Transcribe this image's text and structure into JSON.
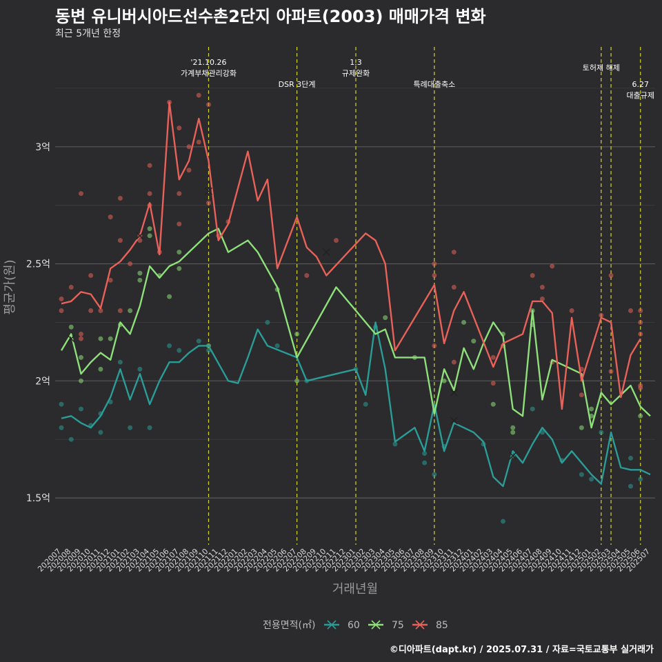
{
  "header": {
    "title": "동변 유니버시아드선수촌2단지 아파트(2003) 매매가격 변화",
    "subtitle": "최근 5개년 한정",
    "caption": "©디아파트(dapt.kr) / 2025.07.31 / 자료=국토교통부 실거래가"
  },
  "chart_data": {
    "type": "line",
    "xlabel": "거래년월",
    "ylabel": "평균가(원)",
    "ylim": [
      1.3,
      3.45
    ],
    "yticks": [
      {
        "value": 1.5,
        "label": "1.5억"
      },
      {
        "value": 2.0,
        "label": "2억"
      },
      {
        "value": 2.5,
        "label": "2.5억"
      },
      {
        "value": 3.0,
        "label": "3억"
      }
    ],
    "grid": true,
    "legend_position": "bottom",
    "legend_title": "전용면적(㎡)",
    "categories": [
      "202007",
      "202008",
      "202009",
      "202010",
      "202011",
      "202012",
      "202101",
      "202102",
      "202103",
      "202104",
      "202105",
      "202106",
      "202107",
      "202108",
      "202109",
      "202110",
      "202111",
      "202112",
      "202201",
      "202202",
      "202203",
      "202204",
      "202205",
      "202206",
      "202207",
      "202208",
      "202209",
      "202210",
      "202211",
      "202212",
      "202301",
      "202302",
      "202303",
      "202304",
      "202305",
      "202306",
      "202307",
      "202308",
      "202309",
      "202310",
      "202311",
      "202312",
      "202401",
      "202402",
      "202403",
      "202404",
      "202405",
      "202406",
      "202407",
      "202408",
      "202409",
      "202410",
      "202411",
      "202412",
      "202501",
      "202502",
      "202503",
      "202504",
      "202505",
      "202506",
      "202507"
    ],
    "series": [
      {
        "name": "60",
        "color": "#2a9d98",
        "values": [
          1.84,
          1.85,
          1.82,
          1.8,
          1.85,
          1.93,
          2.05,
          1.92,
          2.03,
          1.9,
          2.0,
          2.08,
          2.08,
          2.12,
          2.15,
          2.15,
          null,
          2.0,
          1.99,
          2.1,
          2.22,
          2.15,
          null,
          null,
          2.1,
          2.0,
          null,
          null,
          null,
          null,
          2.05,
          1.94,
          2.25,
          2.05,
          1.74,
          1.77,
          1.8,
          1.7,
          1.9,
          1.7,
          1.82,
          1.8,
          1.78,
          1.74,
          1.59,
          1.55,
          1.7,
          1.65,
          1.73,
          1.8,
          1.75,
          1.65,
          1.7,
          1.65,
          1.6,
          1.56,
          1.78,
          1.63,
          1.62,
          1.62,
          1.6
        ],
        "points": [
          [
            0,
            1.9
          ],
          [
            0,
            1.8
          ],
          [
            1,
            1.75
          ],
          [
            2,
            1.88
          ],
          [
            3,
            1.81
          ],
          [
            4,
            1.78
          ],
          [
            4,
            1.86
          ],
          [
            5,
            1.91
          ],
          [
            6,
            2.08
          ],
          [
            7,
            1.8
          ],
          [
            8,
            2.05
          ],
          [
            9,
            1.8
          ],
          [
            11,
            2.15
          ],
          [
            12,
            2.13
          ],
          [
            14,
            2.17
          ],
          [
            15,
            2.13
          ],
          [
            21,
            2.25
          ],
          [
            22,
            2.15
          ],
          [
            25,
            2.0
          ],
          [
            30,
            2.05
          ],
          [
            31,
            1.9
          ],
          [
            32,
            2.23
          ],
          [
            34,
            1.73
          ],
          [
            37,
            1.65
          ],
          [
            37,
            1.69
          ],
          [
            38,
            1.6
          ],
          [
            39,
            1.72
          ],
          [
            43,
            1.73
          ],
          [
            45,
            1.4
          ],
          [
            46,
            1.68
          ],
          [
            48,
            1.88
          ],
          [
            49,
            1.78
          ],
          [
            51,
            1.66
          ],
          [
            53,
            1.6
          ],
          [
            54,
            1.58
          ],
          [
            55,
            1.78
          ],
          [
            58,
            1.55
          ],
          [
            58,
            1.67
          ],
          [
            59,
            1.58
          ]
        ],
        "cross_points": [
          [
            40,
            1.83
          ],
          [
            46,
            1.68
          ]
        ]
      },
      {
        "name": "75",
        "color": "#8ee07a",
        "values": [
          2.13,
          2.2,
          2.03,
          2.08,
          2.12,
          2.09,
          2.25,
          2.2,
          2.32,
          2.49,
          2.44,
          2.49,
          2.51,
          2.55,
          2.59,
          2.63,
          2.65,
          2.55,
          null,
          2.6,
          2.55,
          null,
          2.4,
          null,
          2.1,
          null,
          null,
          null,
          2.4,
          null,
          null,
          null,
          2.2,
          2.22,
          2.1,
          2.1,
          null,
          2.1,
          1.86,
          2.05,
          1.96,
          2.14,
          2.05,
          2.16,
          2.25,
          2.19,
          1.88,
          1.85,
          2.3,
          1.92,
          2.09,
          null,
          null,
          2.03,
          1.8,
          1.95,
          1.9,
          1.94,
          1.98,
          1.89,
          1.85
        ],
        "points": [
          [
            1,
            2.23
          ],
          [
            2,
            2.0
          ],
          [
            2,
            2.1
          ],
          [
            4,
            2.18
          ],
          [
            4,
            2.05
          ],
          [
            5,
            2.18
          ],
          [
            6,
            2.24
          ],
          [
            7,
            2.3
          ],
          [
            8,
            2.43
          ],
          [
            8,
            2.46
          ],
          [
            9,
            2.65
          ],
          [
            9,
            2.62
          ],
          [
            10,
            2.45
          ],
          [
            11,
            2.36
          ],
          [
            12,
            2.55
          ],
          [
            12,
            2.48
          ],
          [
            15,
            2.15
          ],
          [
            22,
            2.39
          ],
          [
            24,
            2.2
          ],
          [
            24,
            2.0
          ],
          [
            33,
            2.27
          ],
          [
            36,
            2.1
          ],
          [
            39,
            2.0
          ],
          [
            41,
            2.25
          ],
          [
            42,
            2.17
          ],
          [
            44,
            1.9
          ],
          [
            45,
            2.2
          ],
          [
            46,
            1.78
          ],
          [
            46,
            1.8
          ],
          [
            48,
            2.3
          ],
          [
            48,
            2.24
          ],
          [
            53,
            1.8
          ],
          [
            54,
            1.85
          ],
          [
            54,
            1.88
          ],
          [
            59,
            1.85
          ]
        ],
        "cross_points": [
          [
            1,
            2.18
          ],
          [
            40,
            1.95
          ]
        ]
      },
      {
        "name": "85",
        "color": "#e8625a",
        "values": [
          2.33,
          2.34,
          2.38,
          2.37,
          2.31,
          2.48,
          2.51,
          2.56,
          2.62,
          2.76,
          2.54,
          3.19,
          2.86,
          2.94,
          3.12,
          2.94,
          2.6,
          2.67,
          null,
          2.98,
          2.77,
          2.86,
          2.48,
          null,
          2.7,
          2.57,
          2.53,
          2.45,
          null,
          null,
          null,
          2.63,
          2.6,
          2.5,
          2.13,
          2.2,
          null,
          null,
          2.41,
          2.16,
          2.3,
          2.38,
          null,
          null,
          2.06,
          2.16,
          null,
          2.2,
          2.34,
          2.34,
          2.29,
          1.88,
          2.27,
          2.0,
          null,
          2.27,
          2.25,
          1.93,
          2.11,
          2.18,
          null
        ],
        "points": [
          [
            0,
            2.35
          ],
          [
            0,
            2.3
          ],
          [
            1,
            2.4
          ],
          [
            2,
            2.8
          ],
          [
            2,
            2.2
          ],
          [
            2,
            2.18
          ],
          [
            3,
            2.45
          ],
          [
            3,
            2.3
          ],
          [
            4,
            2.3
          ],
          [
            5,
            2.7
          ],
          [
            5,
            2.43
          ],
          [
            6,
            2.78
          ],
          [
            6,
            2.6
          ],
          [
            6,
            2.3
          ],
          [
            7,
            2.5
          ],
          [
            8,
            2.62
          ],
          [
            8,
            2.6
          ],
          [
            9,
            2.92
          ],
          [
            9,
            2.8
          ],
          [
            9,
            2.75
          ],
          [
            10,
            2.55
          ],
          [
            11,
            3.19
          ],
          [
            12,
            3.08
          ],
          [
            12,
            2.8
          ],
          [
            12,
            2.67
          ],
          [
            13,
            2.9
          ],
          [
            13,
            3.0
          ],
          [
            14,
            3.22
          ],
          [
            14,
            3.02
          ],
          [
            15,
            3.18
          ],
          [
            15,
            2.76
          ],
          [
            16,
            2.62
          ],
          [
            17,
            2.68
          ],
          [
            25,
            2.45
          ],
          [
            28,
            2.6
          ],
          [
            38,
            2.5
          ],
          [
            38,
            2.45
          ],
          [
            38,
            2.15
          ],
          [
            40,
            2.55
          ],
          [
            40,
            2.4
          ],
          [
            40,
            2.08
          ],
          [
            44,
            1.99
          ],
          [
            44,
            2.1
          ],
          [
            45,
            2.15
          ],
          [
            48,
            2.45
          ],
          [
            49,
            2.4
          ],
          [
            49,
            2.35
          ],
          [
            50,
            2.49
          ],
          [
            50,
            2.08
          ],
          [
            52,
            2.3
          ],
          [
            53,
            2.05
          ],
          [
            53,
            1.94
          ],
          [
            55,
            2.28
          ],
          [
            56,
            2.45
          ],
          [
            56,
            2.04
          ],
          [
            58,
            2.3
          ],
          [
            59,
            2.3
          ],
          [
            59,
            2.25
          ],
          [
            59,
            2.2
          ],
          [
            59,
            1.98
          ],
          [
            59,
            1.97
          ]
        ],
        "cross_points": [
          [
            8,
            2.62
          ],
          [
            15,
            2.81
          ],
          [
            27,
            2.55
          ]
        ]
      }
    ],
    "annotations": [
      {
        "at": 15,
        "lines": [
          "'21.10.26",
          "가계부채관리강화"
        ],
        "row": 0
      },
      {
        "at": 24,
        "lines": [
          "DSR 3단계"
        ],
        "row": 2
      },
      {
        "at": 30,
        "lines": [
          "1.3",
          "규제완화"
        ],
        "row": 0
      },
      {
        "at": 38,
        "lines": [
          "특례대출축소"
        ],
        "row": 2
      },
      {
        "at": 55,
        "lines": [
          "토허제 해제"
        ],
        "row": 1
      },
      {
        "at": 56,
        "lines": [],
        "row": 0
      },
      {
        "at": 59,
        "lines": [
          "6.27",
          "대출규제"
        ],
        "row": 2
      }
    ]
  }
}
